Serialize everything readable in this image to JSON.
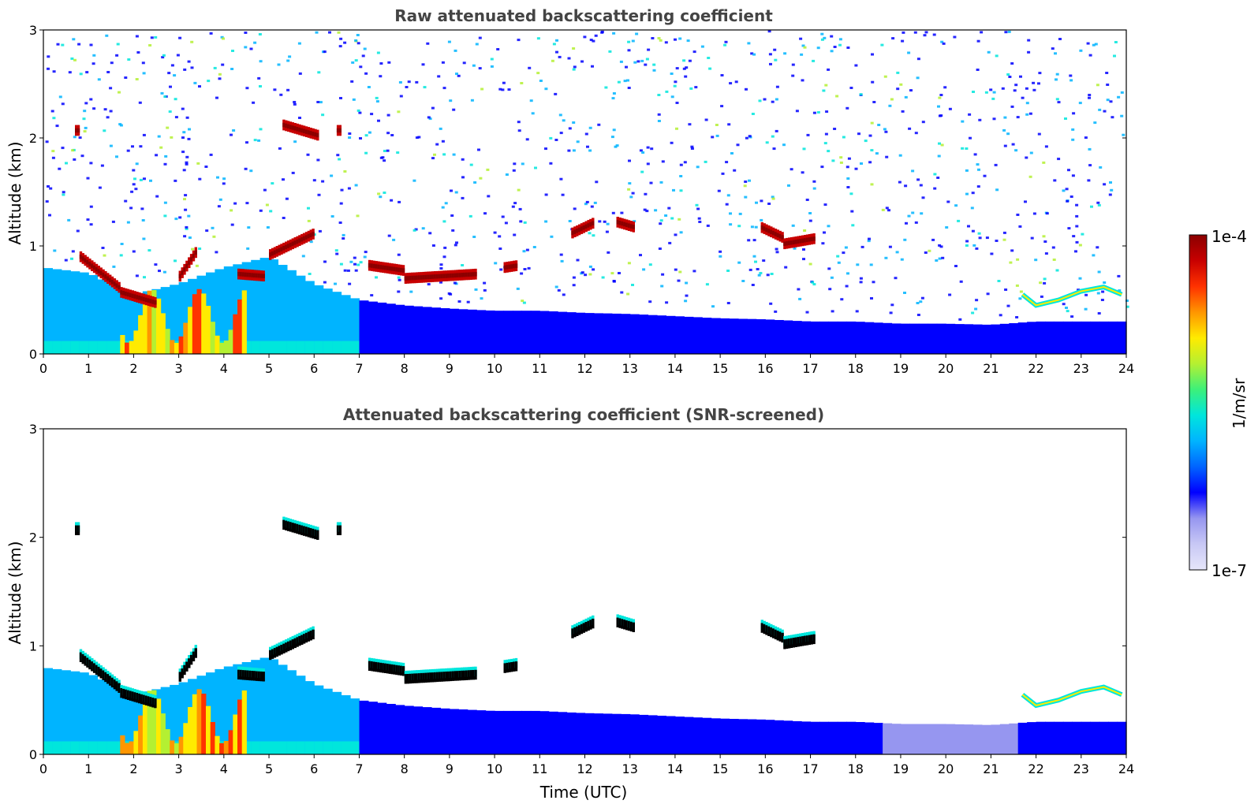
{
  "chart_data": [
    {
      "type": "heatmap",
      "title": "Raw attenuated backscattering coefficient",
      "xlabel": "",
      "ylabel": "Altitude (km)",
      "xlim": [
        0,
        24
      ],
      "ylim": [
        0,
        3
      ],
      "xticks": [
        0,
        1,
        2,
        3,
        4,
        5,
        6,
        7,
        8,
        9,
        10,
        11,
        12,
        13,
        14,
        15,
        16,
        17,
        18,
        19,
        20,
        21,
        22,
        23,
        24
      ],
      "yticks": [
        0,
        1,
        2,
        3
      ],
      "screened": false,
      "features": [
        {
          "name": "boundary-layer",
          "t": [
            0,
            1,
            2,
            3,
            4,
            5,
            6,
            7,
            8,
            9,
            10,
            11,
            12,
            13,
            14,
            15,
            16,
            17,
            18,
            19,
            20,
            21,
            22,
            23,
            24
          ],
          "top_km": [
            0.8,
            0.75,
            0.55,
            0.65,
            0.8,
            0.9,
            0.65,
            0.5,
            0.45,
            0.42,
            0.4,
            0.4,
            0.38,
            0.37,
            0.35,
            0.33,
            0.32,
            0.3,
            0.3,
            0.28,
            0.28,
            0.27,
            0.3,
            0.3,
            0.3
          ]
        },
        {
          "name": "cloud",
          "segments": [
            {
              "t0": 0.8,
              "t1": 1.7,
              "z0": 0.88,
              "z1": 0.58
            },
            {
              "t0": 1.7,
              "t1": 2.5,
              "z0": 0.55,
              "z1": 0.45
            },
            {
              "t0": 3.0,
              "t1": 3.4,
              "z0": 0.7,
              "z1": 0.95
            },
            {
              "t0": 4.3,
              "t1": 4.9,
              "z0": 0.72,
              "z1": 0.7
            },
            {
              "t0": 5.0,
              "t1": 6.0,
              "z0": 0.9,
              "z1": 1.1
            },
            {
              "t0": 7.2,
              "t1": 8.0,
              "z0": 0.8,
              "z1": 0.75
            },
            {
              "t0": 8.0,
              "t1": 9.6,
              "z0": 0.68,
              "z1": 0.72
            },
            {
              "t0": 10.2,
              "t1": 10.5,
              "z0": 0.78,
              "z1": 0.8
            },
            {
              "t0": 11.7,
              "t1": 12.2,
              "z0": 1.1,
              "z1": 1.2
            },
            {
              "t0": 12.7,
              "t1": 13.1,
              "z0": 1.2,
              "z1": 1.15
            },
            {
              "t0": 15.9,
              "t1": 16.4,
              "z0": 1.15,
              "z1": 1.05
            },
            {
              "t0": 16.4,
              "t1": 17.1,
              "z0": 1.0,
              "z1": 1.05
            },
            {
              "t0": 5.3,
              "t1": 6.1,
              "z0": 2.1,
              "z1": 2.0
            },
            {
              "t0": 0.7,
              "t1": 0.8,
              "z0": 2.05,
              "z1": 2.05
            },
            {
              "t0": 6.5,
              "t1": 6.6,
              "z0": 2.05,
              "z1": 2.05
            }
          ]
        },
        {
          "name": "aerosol-layer-late",
          "t": [
            21.7,
            22.0,
            22.5,
            23.0,
            23.5,
            23.9
          ],
          "z_km": [
            0.55,
            0.45,
            0.5,
            0.58,
            0.62,
            0.55
          ]
        },
        {
          "name": "dense-aerosol",
          "t0": 1.7,
          "t1": 4.5,
          "z0": 0,
          "z1": 0.6
        }
      ]
    },
    {
      "type": "heatmap",
      "title": "Attenuated backscattering coefficient (SNR-screened)",
      "xlabel": "Time (UTC)",
      "ylabel": "Altitude (km)",
      "xlim": [
        0,
        24
      ],
      "ylim": [
        0,
        3
      ],
      "xticks": [
        0,
        1,
        2,
        3,
        4,
        5,
        6,
        7,
        8,
        9,
        10,
        11,
        12,
        13,
        14,
        15,
        16,
        17,
        18,
        19,
        20,
        21,
        22,
        23,
        24
      ],
      "yticks": [
        0,
        1,
        2,
        3
      ],
      "screened": true
    }
  ],
  "colorbar": {
    "label": "1/m/sr",
    "max_label": "1e-4",
    "min_label": "1e-7",
    "scale": "log",
    "colormap": [
      "#e6e6fa",
      "#c8c8f5",
      "#9696f0",
      "#0000ff",
      "#0064ff",
      "#00b4ff",
      "#00e6dc",
      "#3cf07a",
      "#b4f032",
      "#ffeb00",
      "#ff9600",
      "#ff3200",
      "#c80000",
      "#8b0000"
    ]
  },
  "colors": {
    "title": "#444444",
    "masked_cloud": "#000000",
    "background": "#ffffff"
  }
}
